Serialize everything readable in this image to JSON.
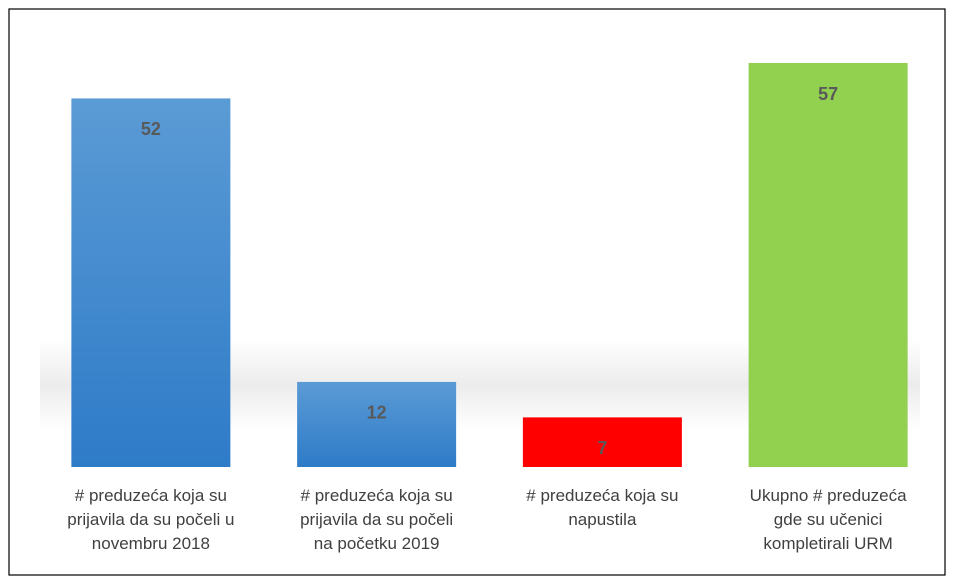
{
  "chart_data": {
    "type": "bar",
    "categories": [
      "# preduzeća koja su\nprijavila da su počeli u\nnovembru  2018",
      "# preduzeća koja su\nprijavila da su počeli\nna početku 2019",
      "# preduzeća koja su\nnapustila",
      "Ukupno # preduzeća\ngde su učenici\nkompletirali URM"
    ],
    "values": [
      52,
      12,
      7,
      57
    ],
    "colors": [
      "#5b9bd5",
      "#5b9bd5",
      "#ff0000",
      "#92d050"
    ]
  }
}
